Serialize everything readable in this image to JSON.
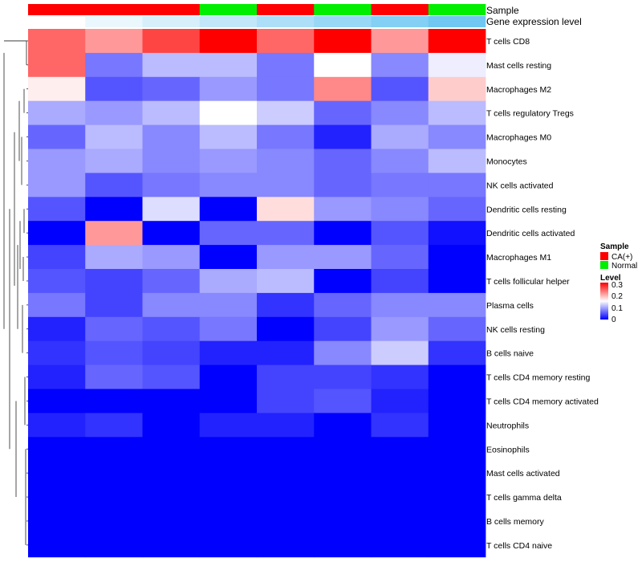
{
  "chart_data": {
    "type": "heatmap",
    "annotation_tracks": [
      {
        "name": "Sample",
        "values": [
          "CA(+)",
          "CA(+)",
          "CA(+)",
          "Normal",
          "CA(+)",
          "Normal",
          "CA(+)",
          "Normal"
        ]
      },
      {
        "name": "Gene expression level",
        "values": [
          0.0,
          0.1,
          0.2,
          0.3,
          0.4,
          0.5,
          0.6,
          0.7
        ]
      }
    ],
    "rows": [
      "T cells CD8",
      "Mast cells resting",
      "Macrophages M2",
      "T cells regulatory  Tregs",
      "Macrophages M0",
      "Monocytes",
      "NK cells activated",
      "Dendritic cells resting",
      "Dendritic cells activated",
      "Macrophages M1",
      "T cells follicular helper",
      "Plasma cells",
      "NK cells resting",
      "B cells naive",
      "T cells CD4 memory resting",
      "T cells CD4 memory activated",
      "Neutrophils",
      "Eosinophils",
      "Mast cells activated",
      "T cells gamma delta",
      "B cells memory",
      "T cells CD4 naive"
    ],
    "values": [
      [
        0.24,
        0.21,
        0.26,
        0.3,
        0.24,
        0.3,
        0.21,
        0.3
      ],
      [
        0.24,
        0.07,
        0.11,
        0.11,
        0.07,
        0.15,
        0.08,
        0.14
      ],
      [
        0.16,
        0.05,
        0.06,
        0.09,
        0.07,
        0.22,
        0.05,
        0.18
      ],
      [
        0.1,
        0.09,
        0.11,
        0.15,
        0.12,
        0.06,
        0.08,
        0.11
      ],
      [
        0.06,
        0.11,
        0.08,
        0.11,
        0.07,
        0.02,
        0.1,
        0.08
      ],
      [
        0.09,
        0.1,
        0.08,
        0.09,
        0.08,
        0.06,
        0.08,
        0.11
      ],
      [
        0.09,
        0.05,
        0.07,
        0.08,
        0.08,
        0.06,
        0.07,
        0.07
      ],
      [
        0.05,
        0.0,
        0.13,
        0.0,
        0.17,
        0.09,
        0.08,
        0.06
      ],
      [
        0.0,
        0.21,
        0.0,
        0.06,
        0.06,
        0.0,
        0.05,
        0.01
      ],
      [
        0.04,
        0.1,
        0.09,
        0.0,
        0.09,
        0.09,
        0.06,
        0.0
      ],
      [
        0.05,
        0.04,
        0.06,
        0.1,
        0.11,
        0.0,
        0.04,
        0.0
      ],
      [
        0.07,
        0.04,
        0.08,
        0.08,
        0.03,
        0.06,
        0.08,
        0.08
      ],
      [
        0.02,
        0.06,
        0.05,
        0.07,
        0.0,
        0.04,
        0.09,
        0.06
      ],
      [
        0.03,
        0.05,
        0.04,
        0.02,
        0.02,
        0.08,
        0.12,
        0.03
      ],
      [
        0.02,
        0.06,
        0.05,
        0.0,
        0.04,
        0.04,
        0.03,
        0.0
      ],
      [
        0.0,
        0.0,
        0.0,
        0.0,
        0.04,
        0.05,
        0.02,
        0.0
      ],
      [
        0.02,
        0.03,
        0.0,
        0.02,
        0.02,
        0.0,
        0.03,
        0.0
      ],
      [
        0.0,
        0.0,
        0.0,
        0.0,
        0.0,
        0.0,
        0.0,
        0.0
      ],
      [
        0.0,
        0.0,
        0.0,
        0.0,
        0.0,
        0.0,
        0.0,
        0.0
      ],
      [
        0.0,
        0.0,
        0.0,
        0.0,
        0.0,
        0.0,
        0.0,
        0.0
      ],
      [
        0.0,
        0.0,
        0.0,
        0.0,
        0.0,
        0.0,
        0.0,
        0.0
      ],
      [
        0.0,
        0.0,
        0.0,
        0.0,
        0.0,
        0.0,
        0.0,
        0.0
      ]
    ],
    "color_scale": {
      "min": 0,
      "max": 0.3,
      "low": "#0000ff",
      "mid": "#ffffff",
      "mid_value": 0.15,
      "high": "#ff0000"
    },
    "legend": {
      "sample_title": "Sample",
      "sample_items": [
        {
          "label": "CA(+)",
          "color": "#ff0000"
        },
        {
          "label": "Normal",
          "color": "#00ee00"
        }
      ],
      "level_title": "Level",
      "level_ticks": [
        "0.3",
        "0.2",
        "0.1",
        "0"
      ]
    },
    "colors": {
      "ca_positive": "#ff0000",
      "normal": "#00ee00",
      "gene_expr_low": "#ffffff",
      "gene_expr_high": "#6fc7f2"
    },
    "dendrogram": true
  }
}
